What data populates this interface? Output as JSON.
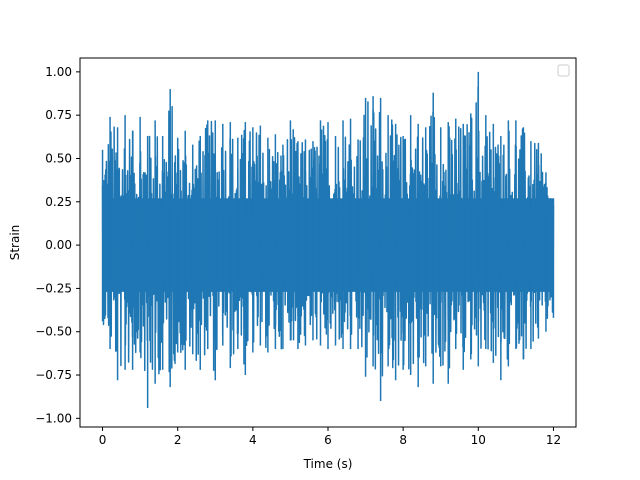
{
  "chart_data": {
    "type": "line",
    "title": "",
    "xlabel": "Time (s)",
    "ylabel": "Strain",
    "xlim": [
      -0.6,
      12.6
    ],
    "ylim": [
      -1.05,
      1.08
    ],
    "xticks": [
      0,
      2,
      4,
      6,
      8,
      10,
      12
    ],
    "xtick_labels": [
      "0",
      "2",
      "4",
      "6",
      "8",
      "10",
      "12"
    ],
    "yticks": [
      -1.0,
      -0.75,
      -0.5,
      -0.25,
      0.0,
      0.25,
      0.5,
      0.75,
      1.0
    ],
    "ytick_labels": [
      "−1.00",
      "−0.75",
      "−0.50",
      "−0.25",
      "0.00",
      "0.25",
      "0.50",
      "0.75",
      "1.00"
    ],
    "grid": false,
    "legend": {
      "placement": "upper-right",
      "entries": []
    },
    "series": [
      {
        "color": "#1f77b4",
        "x_start": 0,
        "x_end": 12,
        "dense_band_upper": 0.27,
        "dense_band_lower": -0.27,
        "upper_envelope": {
          "x": [
            0,
            0.2,
            0.4,
            0.6,
            0.8,
            1.0,
            1.2,
            1.4,
            1.6,
            1.8,
            2.0,
            2.2,
            2.4,
            2.6,
            2.8,
            3.0,
            3.2,
            3.4,
            3.6,
            3.8,
            4.0,
            4.2,
            4.4,
            4.6,
            4.8,
            5.0,
            5.2,
            5.4,
            5.6,
            5.8,
            6.0,
            6.2,
            6.4,
            6.6,
            6.8,
            7.0,
            7.2,
            7.4,
            7.6,
            7.8,
            8.0,
            8.2,
            8.4,
            8.6,
            8.8,
            9.0,
            9.2,
            9.4,
            9.6,
            9.8,
            10.0,
            10.2,
            10.4,
            10.6,
            10.8,
            11.0,
            11.2,
            11.4,
            11.6,
            11.8,
            12.0
          ],
          "y": [
            0.55,
            0.74,
            0.68,
            0.75,
            0.66,
            0.74,
            0.63,
            0.72,
            0.63,
            0.9,
            0.62,
            0.66,
            0.58,
            0.63,
            0.72,
            0.72,
            0.7,
            0.71,
            0.62,
            0.71,
            0.68,
            0.69,
            0.62,
            0.64,
            0.58,
            0.72,
            0.6,
            0.61,
            0.6,
            0.72,
            0.71,
            0.63,
            0.72,
            0.73,
            0.61,
            0.85,
            0.86,
            0.85,
            0.75,
            0.7,
            0.63,
            0.75,
            0.7,
            0.68,
            0.88,
            0.68,
            0.71,
            0.73,
            0.7,
            0.76,
            1.0,
            0.75,
            0.7,
            0.63,
            0.72,
            0.72,
            0.68,
            0.6,
            0.59,
            0.42,
            0.27
          ]
        },
        "lower_envelope": {
          "x": [
            0,
            0.2,
            0.4,
            0.6,
            0.8,
            1.0,
            1.2,
            1.4,
            1.6,
            1.8,
            2.0,
            2.2,
            2.4,
            2.6,
            2.8,
            3.0,
            3.2,
            3.4,
            3.6,
            3.8,
            4.0,
            4.2,
            4.4,
            4.6,
            4.8,
            5.0,
            5.2,
            5.4,
            5.6,
            5.8,
            6.0,
            6.2,
            6.4,
            6.6,
            6.8,
            7.0,
            7.2,
            7.4,
            7.6,
            7.8,
            8.0,
            8.2,
            8.4,
            8.6,
            8.8,
            9.0,
            9.2,
            9.4,
            9.6,
            9.8,
            10.0,
            10.2,
            10.4,
            10.6,
            10.8,
            11.0,
            11.2,
            11.4,
            11.6,
            11.8,
            12.0
          ],
          "y": [
            -0.44,
            -0.6,
            -0.78,
            -0.72,
            -0.72,
            -0.62,
            -0.94,
            -0.8,
            -0.72,
            -0.82,
            -0.62,
            -0.72,
            -0.63,
            -0.72,
            -0.6,
            -0.78,
            -0.58,
            -0.71,
            -0.6,
            -0.75,
            -0.62,
            -0.58,
            -0.62,
            -0.6,
            -0.6,
            -0.55,
            -0.6,
            -0.58,
            -0.55,
            -0.58,
            -0.6,
            -0.58,
            -0.6,
            -0.6,
            -0.6,
            -0.76,
            -0.7,
            -0.9,
            -0.7,
            -0.78,
            -0.72,
            -0.75,
            -0.82,
            -0.7,
            -0.8,
            -0.7,
            -0.8,
            -0.6,
            -0.72,
            -0.66,
            -0.7,
            -0.6,
            -0.68,
            -0.78,
            -0.7,
            -0.6,
            -0.66,
            -0.6,
            -0.54,
            -0.5,
            -0.42
          ]
        }
      }
    ]
  }
}
